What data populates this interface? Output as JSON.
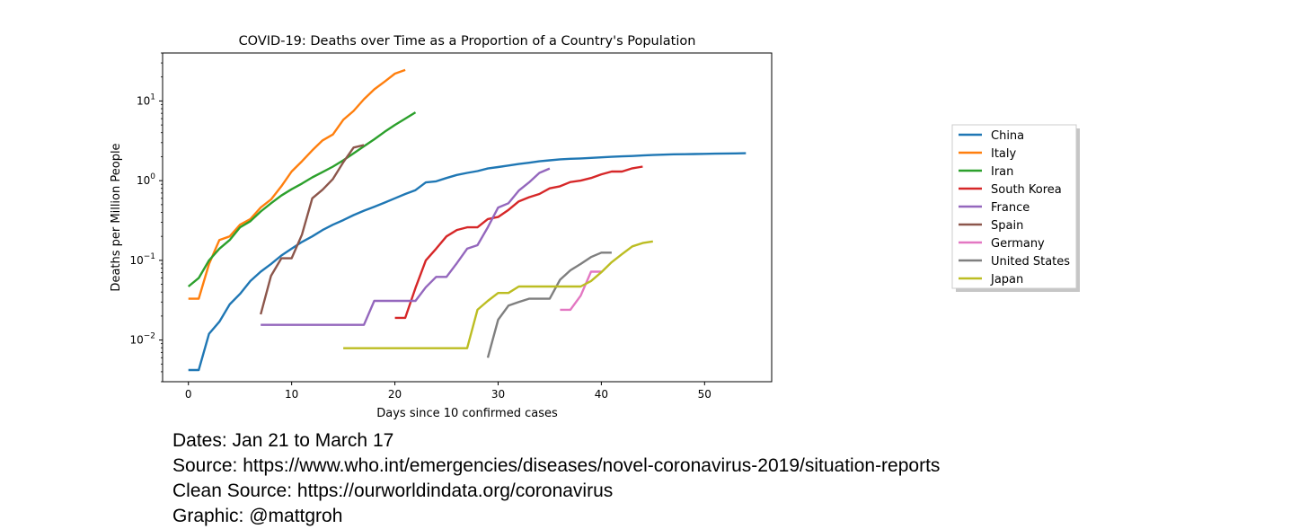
{
  "chart_data": {
    "type": "line",
    "title": "COVID-19: Deaths over Time as a Proportion of a Country's Population",
    "xlabel": "Days since 10 confirmed cases",
    "ylabel": "Deaths per Million People",
    "xlim": [
      -2.5,
      56.5
    ],
    "ylim": [
      0.003,
      40
    ],
    "yscale": "log",
    "xticks": [
      0,
      10,
      20,
      30,
      40,
      50
    ],
    "yticks": [
      {
        "base": "10",
        "exp": "1",
        "value": 10
      },
      {
        "base": "10",
        "exp": "0",
        "value": 1
      },
      {
        "base": "10",
        "exp": "−1",
        "value": 0.1
      },
      {
        "base": "10",
        "exp": "−2",
        "value": 0.01
      }
    ],
    "legend_position": "right",
    "series": [
      {
        "name": "China",
        "color": "#1f77b4",
        "points": [
          [
            0,
            0.0042
          ],
          [
            1,
            0.0042
          ],
          [
            2,
            0.012
          ],
          [
            3,
            0.017
          ],
          [
            4,
            0.028
          ],
          [
            5,
            0.038
          ],
          [
            6,
            0.055
          ],
          [
            7,
            0.072
          ],
          [
            8,
            0.09
          ],
          [
            9,
            0.115
          ],
          [
            10,
            0.14
          ],
          [
            11,
            0.17
          ],
          [
            12,
            0.2
          ],
          [
            13,
            0.24
          ],
          [
            14,
            0.28
          ],
          [
            15,
            0.32
          ],
          [
            16,
            0.37
          ],
          [
            17,
            0.42
          ],
          [
            18,
            0.47
          ],
          [
            19,
            0.53
          ],
          [
            20,
            0.6
          ],
          [
            21,
            0.68
          ],
          [
            22,
            0.76
          ],
          [
            23,
            0.95
          ],
          [
            24,
            0.98
          ],
          [
            25,
            1.08
          ],
          [
            26,
            1.18
          ],
          [
            27,
            1.25
          ],
          [
            28,
            1.32
          ],
          [
            29,
            1.42
          ],
          [
            30,
            1.48
          ],
          [
            31,
            1.55
          ],
          [
            32,
            1.62
          ],
          [
            33,
            1.68
          ],
          [
            34,
            1.75
          ],
          [
            35,
            1.8
          ],
          [
            36,
            1.85
          ],
          [
            37,
            1.88
          ],
          [
            38,
            1.9
          ],
          [
            39,
            1.93
          ],
          [
            40,
            1.96
          ],
          [
            41,
            1.99
          ],
          [
            42,
            2.02
          ],
          [
            43,
            2.04
          ],
          [
            44,
            2.07
          ],
          [
            45,
            2.1
          ],
          [
            46,
            2.12
          ],
          [
            47,
            2.14
          ],
          [
            48,
            2.15
          ],
          [
            49,
            2.16
          ],
          [
            50,
            2.17
          ],
          [
            51,
            2.18
          ],
          [
            52,
            2.19
          ],
          [
            53,
            2.2
          ],
          [
            54,
            2.21
          ]
        ]
      },
      {
        "name": "Italy",
        "color": "#ff7f0e",
        "points": [
          [
            0,
            0.033
          ],
          [
            1,
            0.033
          ],
          [
            2,
            0.09
          ],
          [
            3,
            0.18
          ],
          [
            4,
            0.2
          ],
          [
            5,
            0.28
          ],
          [
            6,
            0.33
          ],
          [
            7,
            0.46
          ],
          [
            8,
            0.58
          ],
          [
            9,
            0.85
          ],
          [
            10,
            1.3
          ],
          [
            11,
            1.75
          ],
          [
            12,
            2.4
          ],
          [
            13,
            3.2
          ],
          [
            14,
            3.8
          ],
          [
            15,
            5.8
          ],
          [
            16,
            7.5
          ],
          [
            17,
            10.5
          ],
          [
            18,
            14
          ],
          [
            19,
            17.5
          ],
          [
            20,
            22
          ],
          [
            21,
            24.5
          ]
        ]
      },
      {
        "name": "Iran",
        "color": "#2ca02c",
        "points": [
          [
            0,
            0.047
          ],
          [
            1,
            0.06
          ],
          [
            2,
            0.1
          ],
          [
            3,
            0.14
          ],
          [
            4,
            0.18
          ],
          [
            5,
            0.26
          ],
          [
            6,
            0.31
          ],
          [
            7,
            0.41
          ],
          [
            8,
            0.52
          ],
          [
            9,
            0.65
          ],
          [
            10,
            0.78
          ],
          [
            11,
            0.92
          ],
          [
            12,
            1.1
          ],
          [
            13,
            1.28
          ],
          [
            14,
            1.5
          ],
          [
            15,
            1.8
          ],
          [
            16,
            2.2
          ],
          [
            17,
            2.7
          ],
          [
            18,
            3.3
          ],
          [
            19,
            4.1
          ],
          [
            20,
            5
          ],
          [
            21,
            6
          ],
          [
            22,
            7.2
          ]
        ]
      },
      {
        "name": "South Korea",
        "color": "#d62728",
        "points": [
          [
            20,
            0.019
          ],
          [
            21,
            0.019
          ],
          [
            22,
            0.045
          ],
          [
            23,
            0.1
          ],
          [
            24,
            0.14
          ],
          [
            25,
            0.2
          ],
          [
            26,
            0.24
          ],
          [
            27,
            0.26
          ],
          [
            28,
            0.26
          ],
          [
            29,
            0.33
          ],
          [
            30,
            0.35
          ],
          [
            31,
            0.43
          ],
          [
            32,
            0.55
          ],
          [
            33,
            0.62
          ],
          [
            34,
            0.68
          ],
          [
            35,
            0.8
          ],
          [
            36,
            0.85
          ],
          [
            37,
            0.96
          ],
          [
            38,
            1
          ],
          [
            39,
            1.08
          ],
          [
            40,
            1.2
          ],
          [
            41,
            1.3
          ],
          [
            42,
            1.3
          ],
          [
            43,
            1.43
          ],
          [
            44,
            1.5
          ]
        ]
      },
      {
        "name": "France",
        "color": "#9467bd",
        "points": [
          [
            7,
            0.0155
          ],
          [
            17,
            0.0155
          ],
          [
            18,
            0.031
          ],
          [
            22,
            0.031
          ],
          [
            23,
            0.046
          ],
          [
            24,
            0.062
          ],
          [
            25,
            0.062
          ],
          [
            26,
            0.092
          ],
          [
            27,
            0.14
          ],
          [
            28,
            0.155
          ],
          [
            29,
            0.26
          ],
          [
            30,
            0.46
          ],
          [
            31,
            0.52
          ],
          [
            32,
            0.75
          ],
          [
            33,
            0.95
          ],
          [
            34,
            1.25
          ],
          [
            35,
            1.42
          ]
        ]
      },
      {
        "name": "Spain",
        "color": "#8c564b",
        "points": [
          [
            7,
            0.021
          ],
          [
            8,
            0.064
          ],
          [
            9,
            0.106
          ],
          [
            10,
            0.106
          ],
          [
            11,
            0.21
          ],
          [
            12,
            0.6
          ],
          [
            13,
            0.77
          ],
          [
            14,
            1.05
          ],
          [
            15,
            1.7
          ],
          [
            16,
            2.6
          ],
          [
            17,
            2.8
          ]
        ]
      },
      {
        "name": "Germany",
        "color": "#e377c2",
        "points": [
          [
            36,
            0.024
          ],
          [
            37,
            0.024
          ],
          [
            38,
            0.036
          ],
          [
            39,
            0.072
          ],
          [
            40,
            0.072
          ]
        ]
      },
      {
        "name": "United States",
        "color": "#7f7f7f",
        "points": [
          [
            29,
            0.006
          ],
          [
            30,
            0.018
          ],
          [
            31,
            0.027
          ],
          [
            32,
            0.03
          ],
          [
            33,
            0.033
          ],
          [
            34,
            0.033
          ],
          [
            35,
            0.033
          ],
          [
            36,
            0.057
          ],
          [
            37,
            0.075
          ],
          [
            38,
            0.09
          ],
          [
            39,
            0.11
          ],
          [
            40,
            0.125
          ],
          [
            41,
            0.125
          ]
        ]
      },
      {
        "name": "Japan",
        "color": "#bcbd22",
        "points": [
          [
            15,
            0.0079
          ],
          [
            27,
            0.0079
          ],
          [
            28,
            0.024
          ],
          [
            29,
            0.031
          ],
          [
            30,
            0.039
          ],
          [
            31,
            0.039
          ],
          [
            32,
            0.047
          ],
          [
            38,
            0.047
          ],
          [
            39,
            0.055
          ],
          [
            40,
            0.071
          ],
          [
            41,
            0.095
          ],
          [
            42,
            0.12
          ],
          [
            43,
            0.15
          ],
          [
            44,
            0.165
          ],
          [
            45,
            0.173
          ]
        ]
      }
    ]
  },
  "caption": {
    "dates": "Dates: Jan 21 to March 17",
    "source": "Source: https://www.who.int/emergencies/diseases/novel-coronavirus-2019/situation-reports",
    "clean_source": "Clean Source: https://ourworldindata.org/coronavirus",
    "graphic": "Graphic: @mattgroh"
  }
}
